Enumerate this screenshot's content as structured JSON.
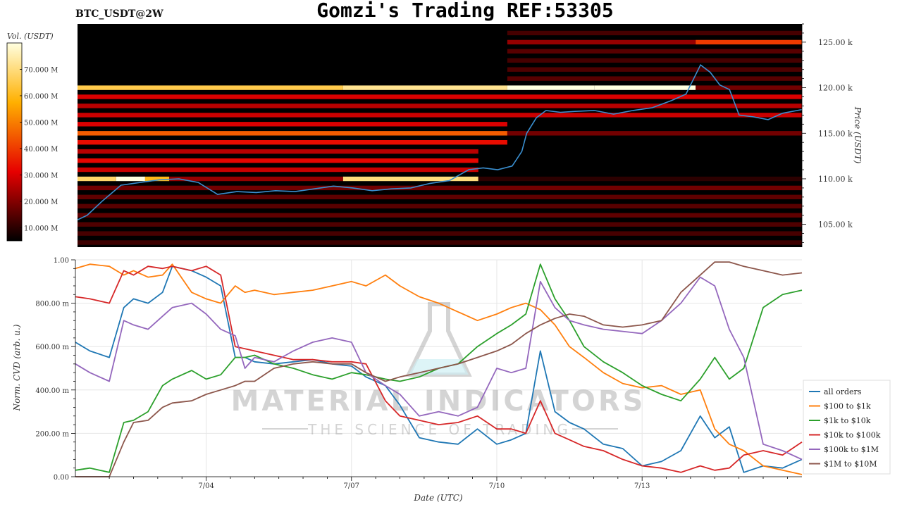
{
  "header": {
    "symbol": "BTC_USDT@2W",
    "title": "Gomzi's Trading REF:53305"
  },
  "watermark": {
    "brand": "MATERIAL INDICATORS",
    "tagline": "THE SCIENCE OF TRADING",
    "icon": "flask-icon",
    "color": "#9a9a9a"
  },
  "chart_data": [
    {
      "type": "heatmap",
      "colorbar": {
        "label": "Vol. (USDT)",
        "ticks": [
          "10.000 M",
          "20.000 M",
          "30.000 M",
          "40.000 M",
          "50.000 M",
          "60.000 M",
          "70.000 M"
        ],
        "range": [
          5,
          80
        ],
        "colormap": "hot"
      },
      "ylabel": "Price (USDT)",
      "ylim": [
        102.5,
        127.0
      ],
      "yticks": [
        "105.00 k",
        "110.00 k",
        "115.00 k",
        "120.00 k",
        "125.00 k"
      ],
      "xlim": [
        1.3,
        16.3
      ],
      "price_line": {
        "color": "#3a8fd0",
        "x": [
          1.3,
          1.5,
          1.8,
          2.2,
          2.6,
          3.0,
          3.4,
          3.8,
          4.2,
          4.6,
          5.0,
          5.4,
          5.8,
          6.2,
          6.6,
          7.0,
          7.4,
          7.8,
          8.2,
          8.6,
          9.0,
          9.4,
          9.7,
          10.0,
          10.3,
          10.5,
          10.6,
          10.8,
          11.0,
          11.3,
          11.6,
          12.0,
          12.4,
          12.8,
          13.2,
          13.6,
          13.9,
          14.2,
          14.4,
          14.6,
          14.8,
          15.0,
          15.3,
          15.6,
          15.9,
          16.3
        ],
        "y": [
          105.5,
          106.0,
          107.5,
          109.3,
          109.6,
          109.9,
          110.0,
          109.6,
          108.3,
          108.6,
          108.5,
          108.7,
          108.6,
          108.9,
          109.2,
          109.0,
          108.7,
          108.9,
          109.0,
          109.5,
          109.8,
          111.0,
          111.2,
          111.0,
          111.4,
          113.0,
          115.0,
          116.7,
          117.5,
          117.3,
          117.4,
          117.5,
          117.1,
          117.5,
          117.8,
          118.6,
          119.3,
          122.5,
          121.7,
          120.3,
          119.8,
          117.0,
          116.8,
          116.5,
          117.2,
          117.6
        ]
      },
      "levels": [
        {
          "price": 120.0,
          "segments": [
            [
              1.3,
              6.8,
              65
            ],
            [
              6.8,
              10.2,
              72
            ],
            [
              10.2,
              12.0,
              80
            ],
            [
              12.0,
              14.1,
              85
            ],
            [
              14.1,
              16.3,
              18
            ]
          ]
        },
        {
          "price": 110.0,
          "segments": [
            [
              1.3,
              2.1,
              68
            ],
            [
              2.1,
              2.7,
              85
            ],
            [
              2.7,
              3.2,
              60
            ],
            [
              3.2,
              6.8,
              22
            ],
            [
              6.8,
              9.6,
              70
            ],
            [
              9.6,
              16.3,
              10
            ]
          ]
        },
        {
          "price": 125.0,
          "segments": [
            [
              10.2,
              14.1,
              22
            ],
            [
              14.1,
              16.3,
              40
            ]
          ]
        },
        {
          "price": 115.0,
          "segments": [
            [
              1.3,
              10.2,
              45
            ],
            [
              10.2,
              16.3,
              18
            ]
          ]
        },
        {
          "price": 116.0,
          "segments": [
            [
              1.3,
              10.2,
              30
            ]
          ]
        },
        {
          "price": 114.0,
          "segments": [
            [
              1.3,
              10.2,
              33
            ]
          ]
        },
        {
          "price": 112.0,
          "segments": [
            [
              1.3,
              9.6,
              32
            ]
          ]
        },
        {
          "price": 111.0,
          "segments": [
            [
              1.3,
              9.6,
              28
            ]
          ]
        },
        {
          "price": 113.0,
          "segments": [
            [
              1.3,
              9.6,
              26
            ]
          ]
        },
        {
          "price": 117.0,
          "segments": [
            [
              1.3,
              16.3,
              28
            ]
          ]
        },
        {
          "price": 118.0,
          "segments": [
            [
              1.3,
              16.3,
              26
            ]
          ]
        },
        {
          "price": 119.0,
          "segments": [
            [
              1.3,
              16.3,
              30
            ]
          ]
        },
        {
          "price": 121.0,
          "segments": [
            [
              10.2,
              16.3,
              15
            ]
          ]
        },
        {
          "price": 122.0,
          "segments": [
            [
              10.2,
              16.3,
              14
            ]
          ]
        },
        {
          "price": 123.0,
          "segments": [
            [
              10.2,
              16.3,
              13
            ]
          ]
        },
        {
          "price": 124.0,
          "segments": [
            [
              10.2,
              16.3,
              15
            ]
          ]
        },
        {
          "price": 126.0,
          "segments": [
            [
              10.2,
              16.3,
              13
            ]
          ]
        },
        {
          "price": 109.0,
          "segments": [
            [
              1.3,
              16.3,
              18
            ]
          ]
        },
        {
          "price": 108.0,
          "segments": [
            [
              1.3,
              16.3,
              16
            ]
          ]
        },
        {
          "price": 107.0,
          "segments": [
            [
              1.3,
              16.3,
              15
            ]
          ]
        },
        {
          "price": 106.0,
          "segments": [
            [
              1.3,
              16.3,
              16
            ]
          ]
        },
        {
          "price": 105.0,
          "segments": [
            [
              1.3,
              16.3,
              14
            ]
          ]
        },
        {
          "price": 104.0,
          "segments": [
            [
              1.3,
              16.3,
              13
            ]
          ]
        },
        {
          "price": 103.0,
          "segments": [
            [
              1.3,
              16.3,
              12
            ]
          ]
        }
      ]
    },
    {
      "type": "line",
      "xlabel": "Date (UTC)",
      "ylabel": "Norm. CVD (arb. u.)",
      "ylim": [
        0,
        1
      ],
      "xlim": [
        1.3,
        16.3
      ],
      "xticks": [
        {
          "value": 4,
          "label": "7/04"
        },
        {
          "value": 7,
          "label": "7/07"
        },
        {
          "value": 10,
          "label": "7/10"
        },
        {
          "value": 13,
          "label": "7/13"
        }
      ],
      "yticks": [
        "0.00",
        "200.00 m",
        "400.00 m",
        "600.00 m",
        "800.00 m",
        "1.00"
      ],
      "grid": true,
      "legend_position": "bottom-right",
      "x": [
        1.3,
        1.6,
        2.0,
        2.3,
        2.5,
        2.8,
        3.1,
        3.3,
        3.7,
        4.0,
        4.3,
        4.6,
        4.8,
        5.0,
        5.4,
        5.8,
        6.2,
        6.6,
        7.0,
        7.3,
        7.7,
        8.0,
        8.4,
        8.8,
        9.2,
        9.6,
        10.0,
        10.3,
        10.6,
        10.9,
        11.2,
        11.5,
        11.8,
        12.2,
        12.6,
        13.0,
        13.4,
        13.8,
        14.2,
        14.5,
        14.8,
        15.1,
        15.5,
        15.9,
        16.3
      ],
      "series": [
        {
          "name": "all orders",
          "color": "#1f77b4",
          "values": [
            0.62,
            0.58,
            0.55,
            0.78,
            0.82,
            0.8,
            0.85,
            0.97,
            0.95,
            0.92,
            0.88,
            0.55,
            0.55,
            0.53,
            0.52,
            0.53,
            0.54,
            0.52,
            0.51,
            0.46,
            0.42,
            0.33,
            0.18,
            0.16,
            0.15,
            0.22,
            0.15,
            0.17,
            0.2,
            0.58,
            0.3,
            0.25,
            0.22,
            0.15,
            0.13,
            0.05,
            0.07,
            0.12,
            0.28,
            0.18,
            0.23,
            0.02,
            0.05,
            0.04,
            0.08
          ]
        },
        {
          "name": "$100 to $1k",
          "color": "#ff7f0e",
          "values": [
            0.96,
            0.98,
            0.97,
            0.93,
            0.95,
            0.92,
            0.93,
            0.98,
            0.85,
            0.82,
            0.8,
            0.88,
            0.85,
            0.86,
            0.84,
            0.85,
            0.86,
            0.88,
            0.9,
            0.88,
            0.93,
            0.88,
            0.83,
            0.8,
            0.76,
            0.72,
            0.75,
            0.78,
            0.8,
            0.77,
            0.7,
            0.6,
            0.55,
            0.48,
            0.43,
            0.41,
            0.42,
            0.38,
            0.4,
            0.22,
            0.15,
            0.12,
            0.05,
            0.03,
            0.01
          ]
        },
        {
          "name": "$1k to $10k",
          "color": "#2ca02c",
          "values": [
            0.03,
            0.04,
            0.02,
            0.25,
            0.26,
            0.3,
            0.42,
            0.45,
            0.49,
            0.45,
            0.47,
            0.55,
            0.55,
            0.56,
            0.52,
            0.5,
            0.47,
            0.45,
            0.48,
            0.47,
            0.45,
            0.44,
            0.46,
            0.5,
            0.52,
            0.6,
            0.66,
            0.7,
            0.75,
            0.98,
            0.82,
            0.72,
            0.6,
            0.53,
            0.48,
            0.42,
            0.38,
            0.35,
            0.45,
            0.55,
            0.45,
            0.5,
            0.78,
            0.84,
            0.86
          ]
        },
        {
          "name": "$10k to $100k",
          "color": "#d62728",
          "values": [
            0.83,
            0.82,
            0.8,
            0.95,
            0.93,
            0.97,
            0.96,
            0.97,
            0.95,
            0.97,
            0.93,
            0.6,
            0.59,
            0.58,
            0.56,
            0.54,
            0.54,
            0.53,
            0.53,
            0.52,
            0.35,
            0.28,
            0.26,
            0.24,
            0.25,
            0.28,
            0.22,
            0.22,
            0.2,
            0.35,
            0.2,
            0.17,
            0.14,
            0.12,
            0.08,
            0.05,
            0.04,
            0.02,
            0.05,
            0.03,
            0.04,
            0.1,
            0.12,
            0.1,
            0.16
          ]
        },
        {
          "name": "$100k to $1M",
          "color": "#9467bd",
          "values": [
            0.52,
            0.48,
            0.44,
            0.72,
            0.7,
            0.68,
            0.74,
            0.78,
            0.8,
            0.75,
            0.68,
            0.65,
            0.5,
            0.55,
            0.53,
            0.58,
            0.62,
            0.64,
            0.62,
            0.48,
            0.42,
            0.38,
            0.28,
            0.3,
            0.28,
            0.32,
            0.5,
            0.48,
            0.5,
            0.9,
            0.78,
            0.72,
            0.7,
            0.68,
            0.67,
            0.66,
            0.72,
            0.8,
            0.92,
            0.88,
            0.68,
            0.55,
            0.15,
            0.12,
            0.08
          ]
        },
        {
          "name": "$1M to $10M",
          "color": "#8c564b",
          "values": [
            0.0,
            0.0,
            0.0,
            0.16,
            0.25,
            0.26,
            0.32,
            0.34,
            0.35,
            0.38,
            0.4,
            0.42,
            0.44,
            0.44,
            0.5,
            0.52,
            0.53,
            0.52,
            0.52,
            0.48,
            0.44,
            0.46,
            0.48,
            0.5,
            0.52,
            0.55,
            0.58,
            0.61,
            0.66,
            0.7,
            0.73,
            0.75,
            0.74,
            0.7,
            0.69,
            0.7,
            0.72,
            0.85,
            0.93,
            0.99,
            0.99,
            0.97,
            0.95,
            0.93,
            0.94
          ]
        }
      ]
    }
  ]
}
